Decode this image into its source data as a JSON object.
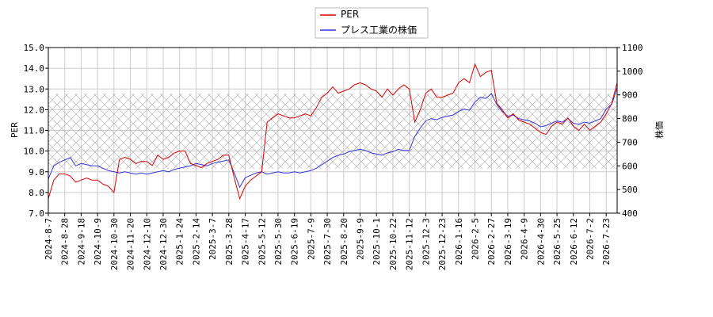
{
  "chart_data": {
    "type": "line",
    "ylabel": "PER",
    "y2label": "株価",
    "categories": [
      "2024-8-7",
      null,
      null,
      "2024-8-28",
      null,
      null,
      "2024-9-18",
      null,
      null,
      "2024-10-9",
      null,
      null,
      "2024-10-30",
      null,
      null,
      "2024-11-20",
      null,
      null,
      "2024-12-10",
      null,
      null,
      "2024-12-30",
      null,
      null,
      "2025-1-24",
      null,
      null,
      "2025-2-14",
      null,
      null,
      "2025-3-7",
      null,
      null,
      "2025-3-28",
      null,
      null,
      "2025-4-17",
      null,
      null,
      "2025-5-12",
      null,
      null,
      "2025-5-30",
      null,
      null,
      "2025-6-19",
      null,
      null,
      "2025-7-9",
      null,
      null,
      "2025-7-30",
      null,
      null,
      "2025-8-20",
      null,
      null,
      "2025-9-9",
      null,
      null,
      "2025-10-1",
      null,
      null,
      "2025-10-22",
      null,
      null,
      "2025-11-12",
      null,
      null,
      "2025-12-3",
      null,
      null,
      "2025-12-23",
      null,
      null,
      "2026-1-16",
      null,
      null,
      "2026-2-5",
      null,
      null,
      "2026-2-27",
      null,
      null,
      "2026-3-19",
      null,
      null,
      "2026-4-9",
      null,
      null,
      "2026-4-30",
      null,
      null,
      "2026-5-25",
      null,
      null,
      "2026-6-12",
      null,
      null,
      "2026-7-2",
      null,
      null,
      "2026-7-23",
      null,
      null
    ],
    "series": [
      {
        "name": "PER",
        "color": "#dd0000",
        "values": [
          7.7,
          8.6,
          8.9,
          8.9,
          8.8,
          8.5,
          8.6,
          8.7,
          8.6,
          8.6,
          8.4,
          8.3,
          8.0,
          9.6,
          9.7,
          9.6,
          9.4,
          9.5,
          9.5,
          9.3,
          9.8,
          9.6,
          9.7,
          9.9,
          10.0,
          10.0,
          9.4,
          9.3,
          9.2,
          9.4,
          9.5,
          9.6,
          9.8,
          9.8,
          8.7,
          7.7,
          8.3,
          8.6,
          8.8,
          9.0,
          11.4,
          11.6,
          11.8,
          11.7,
          11.6,
          11.6,
          11.7,
          11.8,
          11.7,
          12.1,
          12.6,
          12.8,
          13.1,
          12.8,
          12.9,
          13.0,
          13.2,
          13.3,
          13.2,
          13.0,
          12.9,
          12.6,
          13.0,
          12.7,
          13.0,
          13.2,
          13.0,
          11.4,
          12.0,
          12.8,
          13.0,
          12.6,
          12.6,
          12.7,
          12.8,
          13.3,
          13.5,
          13.3,
          14.2,
          13.6,
          13.8,
          13.9,
          12.3,
          12.0,
          11.6,
          11.8,
          11.5,
          11.4,
          11.3,
          11.1,
          10.9,
          10.8,
          11.2,
          11.4,
          11.3,
          11.6,
          11.2,
          11.0,
          11.3,
          11.0,
          11.2,
          11.4,
          11.8,
          12.3,
          13.3
        ]
      },
      {
        "name": "プレス工業の株価",
        "color": "#3333dd",
        "axis": "y2",
        "values": [
          545,
          600,
          615,
          625,
          635,
          600,
          610,
          605,
          600,
          600,
          590,
          580,
          575,
          570,
          575,
          570,
          565,
          570,
          565,
          570,
          575,
          580,
          575,
          585,
          590,
          595,
          600,
          610,
          605,
          600,
          610,
          615,
          620,
          625,
          570,
          510,
          550,
          560,
          570,
          575,
          565,
          570,
          575,
          570,
          570,
          575,
          570,
          575,
          580,
          590,
          605,
          620,
          635,
          645,
          650,
          660,
          665,
          670,
          665,
          655,
          650,
          645,
          655,
          660,
          670,
          665,
          665,
          725,
          760,
          790,
          800,
          795,
          805,
          810,
          815,
          830,
          840,
          835,
          870,
          890,
          885,
          905,
          860,
          830,
          810,
          815,
          800,
          795,
          790,
          780,
          765,
          770,
          780,
          790,
          785,
          800,
          780,
          775,
          785,
          780,
          790,
          800,
          840,
          860,
          930
        ]
      }
    ],
    "ylim": [
      7,
      15
    ],
    "yticks": [
      {
        "value": 7,
        "label": "7.0"
      },
      {
        "value": 8,
        "label": "8.0"
      },
      {
        "value": 9,
        "label": "9.0"
      },
      {
        "value": 10,
        "label": "10.0"
      },
      {
        "value": 11,
        "label": "11.0"
      },
      {
        "value": 12,
        "label": "12.0"
      },
      {
        "value": 13,
        "label": "13.0"
      },
      {
        "value": 14,
        "label": "14.0"
      },
      {
        "value": 15,
        "label": "15.0"
      }
    ],
    "y2lim": [
      400,
      1100
    ],
    "y2ticks": [
      400,
      500,
      600,
      700,
      800,
      900,
      1000,
      1100
    ],
    "grid": true
  }
}
